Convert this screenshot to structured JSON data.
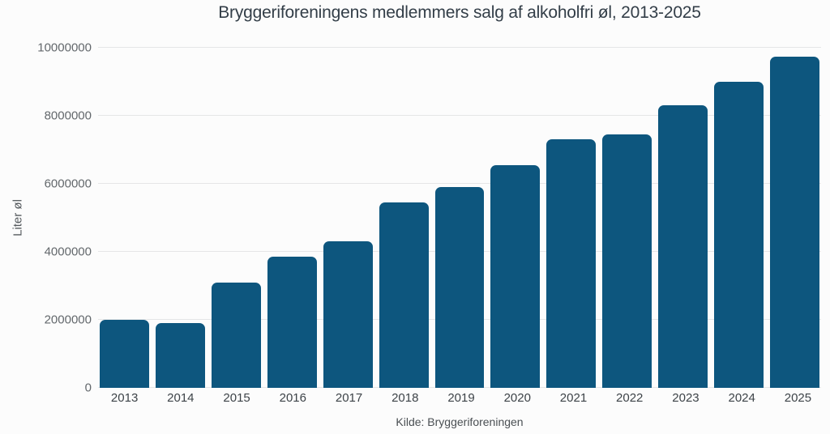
{
  "chart_data": {
    "type": "bar",
    "title": "Bryggeriforeningens medlemmers salg af alkoholfri øl, 2013-2025",
    "ylabel": "Liter øl",
    "xlabel": "",
    "source": "Kilde: Bryggeriforeningen",
    "categories": [
      "2013",
      "2014",
      "2015",
      "2016",
      "2017",
      "2018",
      "2019",
      "2020",
      "2021",
      "2022",
      "2023",
      "2024",
      "2025"
    ],
    "values": [
      2000000,
      1900000,
      3100000,
      3850000,
      4300000,
      5450000,
      5900000,
      6550000,
      7300000,
      7450000,
      8300000,
      9000000,
      9750000
    ],
    "ylim": [
      0,
      10000000
    ],
    "yticks": [
      0,
      2000000,
      4000000,
      6000000,
      8000000,
      10000000
    ],
    "grid": true,
    "legend": "none",
    "bar_color": "#0d567e",
    "background_color": "#fcfcfc",
    "gridline_color": "#e5e6e7"
  }
}
